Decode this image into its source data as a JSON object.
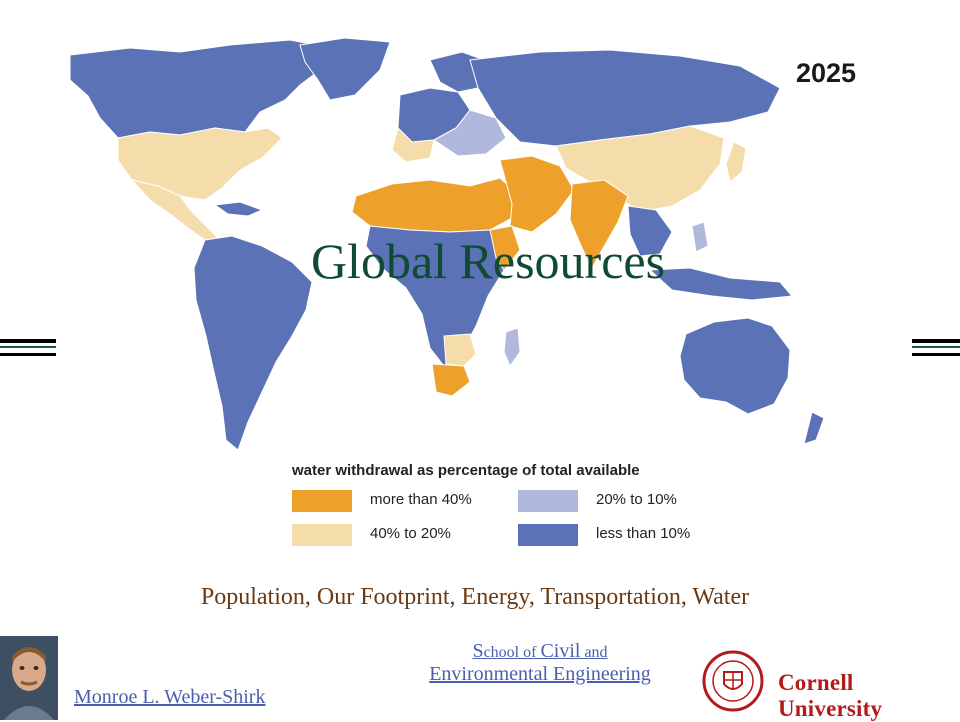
{
  "map": {
    "year": "2025",
    "legend": {
      "title": "water withdrawal as percentage of total available",
      "items": [
        {
          "label": "more than 40%",
          "color": "#eea12a"
        },
        {
          "label": "40% to 20%",
          "color": "#f4dcab"
        },
        {
          "label": "20% to 10%",
          "color": "#b0b8dc"
        },
        {
          "label": "less than 10%",
          "color": "#5b72b6"
        }
      ]
    },
    "icons": [
      "world-map"
    ]
  },
  "slide": {
    "title": "Global Resources",
    "subtitle": "Population, Our Footprint, Energy, Transportation, Water"
  },
  "footer": {
    "author": "Monroe L. Weber-Shirk",
    "school": {
      "s_cap": "S",
      "school_of": "chool of ",
      "civil": "Civil",
      "and": " and",
      "line2": "Environmental Engineering"
    },
    "institution": "Cornell University",
    "icons": [
      "author-photo",
      "cornell-seal"
    ]
  },
  "colors": {
    "title": "#0f4a33",
    "subtitle": "#6b3a12",
    "link": "#4a5eb0",
    "brand_red": "#b31b1b"
  }
}
